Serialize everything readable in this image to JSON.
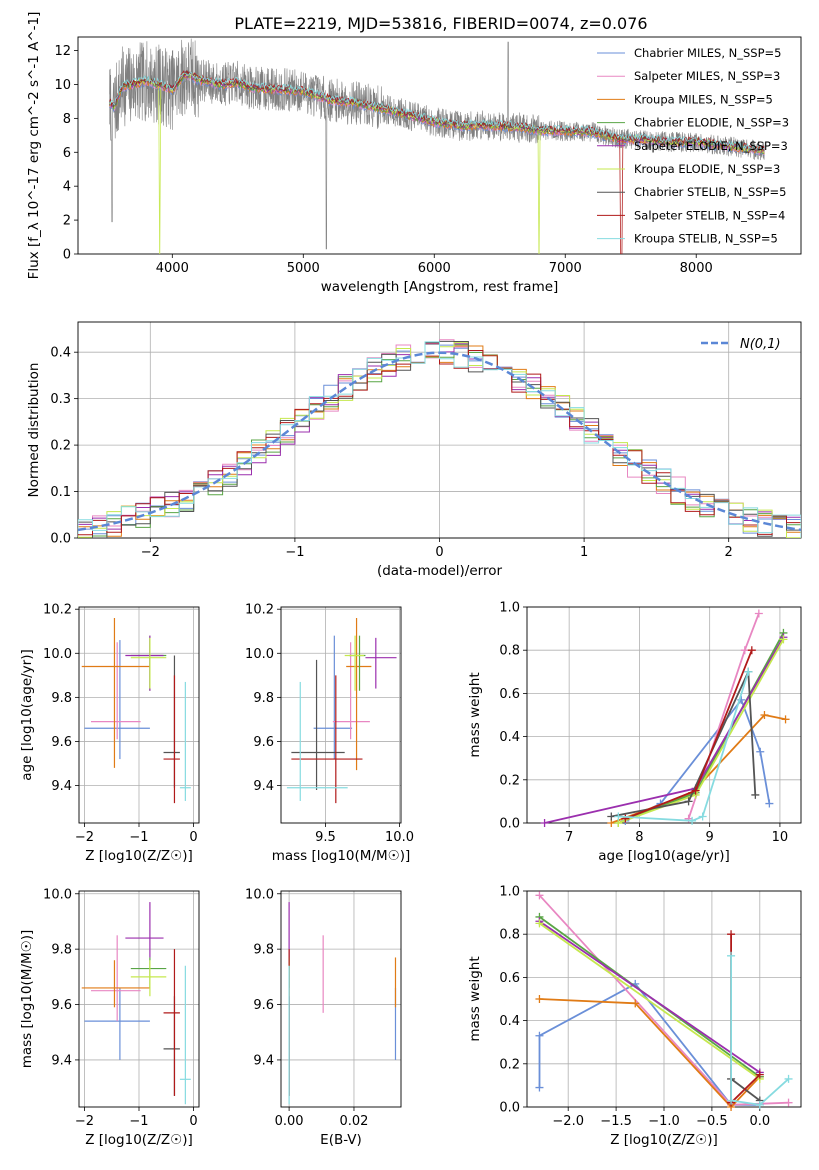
{
  "figure_title": "PLATE=2219, MJD=53816, FIBERID=0074, z=0.076",
  "series_colors": [
    "#6a8fd8",
    "#e887c2",
    "#e07b16",
    "#59a545",
    "#9b2fae",
    "#c5e84e",
    "#545454",
    "#b01a1a",
    "#86dbe0"
  ],
  "legend_labels": [
    "Chabrier MILES, N_SSP=5",
    "Salpeter MILES, N_SSP=3",
    "Kroupa MILES, N_SSP=5",
    "Chabrier ELODIE, N_SSP=3",
    "Salpeter ELODIE, N_SSP=3",
    "Kroupa ELODIE, N_SSP=3",
    "Chabrier STELIB, N_SSP=5",
    "Salpeter STELIB, N_SSP=4",
    "Kroupa STELIB, N_SSP=5"
  ],
  "chart_data": [
    {
      "id": "spectrum",
      "type": "line",
      "xlabel": "wavelength [Angstrom, rest frame]",
      "ylabel": "Flux [f_λ 10^-17 erg cm^-2 s^-1 A^-1]",
      "xlim": [
        3280,
        8800
      ],
      "ylim": [
        0,
        12.8
      ],
      "xticks": [
        4000,
        5000,
        6000,
        7000,
        8000
      ],
      "yticks": [
        0,
        2,
        4,
        6,
        8,
        10,
        12
      ],
      "grid": false,
      "legend": "upper right",
      "data_color": "#808080",
      "continuum": [
        [
          3520,
          8.9
        ],
        [
          3560,
          8.7
        ],
        [
          3620,
          9.9
        ],
        [
          3700,
          10.0
        ],
        [
          3800,
          10.2
        ],
        [
          3900,
          10.0
        ],
        [
          4000,
          9.7
        ],
        [
          4100,
          10.6
        ],
        [
          4200,
          10.3
        ],
        [
          4300,
          10.1
        ],
        [
          4400,
          10.0
        ],
        [
          4500,
          10.1
        ],
        [
          4600,
          9.8
        ],
        [
          4800,
          9.7
        ],
        [
          5000,
          9.6
        ],
        [
          5200,
          9.1
        ],
        [
          5400,
          8.9
        ],
        [
          5600,
          8.6
        ],
        [
          5800,
          8.2
        ],
        [
          6000,
          7.8
        ],
        [
          6200,
          7.55
        ],
        [
          6400,
          7.6
        ],
        [
          6600,
          7.5
        ],
        [
          6800,
          7.3
        ],
        [
          7000,
          7.25
        ],
        [
          7200,
          7.2
        ],
        [
          7400,
          6.8
        ],
        [
          7600,
          6.75
        ],
        [
          7800,
          6.6
        ],
        [
          8000,
          6.6
        ],
        [
          8200,
          6.4
        ],
        [
          8400,
          6.2
        ],
        [
          8520,
          6.1
        ]
      ],
      "data_range": [
        3520,
        8520
      ],
      "model_range": [
        3520,
        8520
      ]
    },
    {
      "id": "residuals",
      "type": "bar",
      "xlabel": "(data-model)/error",
      "ylabel": "Normed distribution",
      "xlim": [
        -2.5,
        2.5
      ],
      "ylim": [
        0,
        0.465
      ],
      "xticks": [
        -2,
        -1,
        0,
        1,
        2
      ],
      "yticks": [
        0.0,
        0.1,
        0.2,
        0.3,
        0.4
      ],
      "grid": true,
      "legend": "upper right",
      "legend_label": "N(0,1)",
      "gaussian_color": "#5b87d6",
      "bin_width": 0.1
    },
    {
      "id": "age-vs-Z",
      "type": "scatter",
      "xlabel": "Z [log10(Z/Z☉)]",
      "ylabel": "age [log10(age/yr)]",
      "xlim": [
        -2.1,
        0.1
      ],
      "ylim": [
        9.23,
        10.21
      ],
      "xticks": [
        -2,
        -1,
        0
      ],
      "yticks": [
        9.4,
        9.6,
        9.8,
        10.0,
        10.2
      ],
      "grid": true,
      "points": [
        {
          "x": -1.35,
          "y": 9.66,
          "xerr": [
            0.65,
            0.55
          ],
          "yerr": [
            0.14,
            0.4
          ]
        },
        {
          "x": -1.4,
          "y": 9.69,
          "xerr": [
            0.48,
            0.43
          ],
          "yerr": [
            0.08,
            0.36
          ]
        },
        {
          "x": -1.45,
          "y": 9.94,
          "xerr": [
            0.6,
            0.65
          ],
          "yerr": [
            0.46,
            0.22
          ]
        },
        {
          "x": -0.8,
          "y": 9.99,
          "xerr": [
            0.35,
            0.3
          ],
          "yerr": [
            0.16,
            0.09
          ]
        },
        {
          "x": -0.8,
          "y": 9.99,
          "xerr": [
            0.45,
            0.25
          ],
          "yerr": [
            0.16,
            0.09
          ]
        },
        {
          "x": -0.8,
          "y": 9.98,
          "xerr": [
            0.35,
            0.3
          ],
          "yerr": [
            0.14,
            0.09
          ]
        },
        {
          "x": -0.35,
          "y": 9.55,
          "xerr": [
            0.2,
            0.1
          ],
          "yerr": [
            0.16,
            0.44
          ]
        },
        {
          "x": -0.35,
          "y": 9.52,
          "xerr": [
            0.2,
            0.1
          ],
          "yerr": [
            0.2,
            0.38
          ]
        },
        {
          "x": -0.15,
          "y": 9.39,
          "xerr": [
            0.1,
            0.1
          ],
          "yerr": [
            0.06,
            0.48
          ]
        }
      ]
    },
    {
      "id": "age-vs-mass",
      "type": "scatter",
      "xlabel": "mass [log10(M/M☉)]",
      "ylabel": "",
      "xlim": [
        9.2,
        10.01
      ],
      "ylim": [
        9.23,
        10.21
      ],
      "xticks": [
        9.5,
        10.0
      ],
      "yticks": [
        9.4,
        9.6,
        9.8,
        10.0,
        10.2
      ],
      "grid": true,
      "points": [
        {
          "x": 9.56,
          "y": 9.66,
          "xerr": [
            0.14,
            0.12
          ],
          "yerr": [
            0.14,
            0.42
          ]
        },
        {
          "x": 9.67,
          "y": 9.69,
          "xerr": [
            0.12,
            0.13
          ],
          "yerr": [
            0.08,
            0.36
          ]
        },
        {
          "x": 9.71,
          "y": 9.94,
          "xerr": [
            0.07,
            0.1
          ],
          "yerr": [
            0.47,
            0.22
          ]
        },
        {
          "x": 9.73,
          "y": 9.99,
          "xerr": [
            0.07,
            0.04
          ],
          "yerr": [
            0.16,
            0.09
          ]
        },
        {
          "x": 9.84,
          "y": 9.98,
          "xerr": [
            0.07,
            0.14
          ],
          "yerr": [
            0.14,
            0.09
          ]
        },
        {
          "x": 9.7,
          "y": 9.99,
          "xerr": [
            0.07,
            0.06
          ],
          "yerr": [
            0.16,
            0.09
          ]
        },
        {
          "x": 9.44,
          "y": 9.55,
          "xerr": [
            0.17,
            0.19
          ],
          "yerr": [
            0.17,
            0.42
          ]
        },
        {
          "x": 9.57,
          "y": 9.52,
          "xerr": [
            0.3,
            0.18
          ],
          "yerr": [
            0.2,
            0.38
          ]
        },
        {
          "x": 9.33,
          "y": 9.39,
          "xerr": [
            0.09,
            0.32
          ],
          "yerr": [
            0.06,
            0.48
          ]
        }
      ]
    },
    {
      "id": "massweight-vs-age",
      "type": "line",
      "xlabel": "age [log10(age/yr)]",
      "ylabel": "mass weight",
      "xlim": [
        6.4,
        10.3
      ],
      "ylim": [
        0,
        1.0
      ],
      "xticks": [
        7,
        8,
        9,
        10
      ],
      "yticks": [
        0.0,
        0.2,
        0.4,
        0.6,
        0.8,
        1.0
      ],
      "grid": true,
      "series": [
        {
          "points": [
            [
              7.8,
              0.01
            ],
            [
              8.3,
              0.09
            ],
            [
              9.45,
              0.57
            ],
            [
              9.72,
              0.33
            ],
            [
              9.85,
              0.09
            ]
          ]
        },
        {
          "points": [
            [
              8.7,
              0.02
            ],
            [
              9.5,
              0.8
            ],
            [
              9.7,
              0.97
            ]
          ]
        },
        {
          "points": [
            [
              7.6,
              0.0
            ],
            [
              8.75,
              0.14
            ],
            [
              9.78,
              0.5
            ],
            [
              10.08,
              0.48
            ]
          ]
        },
        {
          "points": [
            [
              7.7,
              0.0
            ],
            [
              8.8,
              0.14
            ],
            [
              10.05,
              0.88
            ]
          ]
        },
        {
          "points": [
            [
              6.65,
              0.0
            ],
            [
              8.8,
              0.16
            ],
            [
              10.05,
              0.86
            ]
          ]
        },
        {
          "points": [
            [
              7.7,
              0.0
            ],
            [
              8.8,
              0.13
            ],
            [
              10.05,
              0.85
            ]
          ]
        },
        {
          "points": [
            [
              7.6,
              0.03
            ],
            [
              8.7,
              0.1
            ],
            [
              9.55,
              0.7
            ],
            [
              9.65,
              0.13
            ]
          ]
        },
        {
          "points": [
            [
              7.8,
              0.02
            ],
            [
              8.8,
              0.15
            ],
            [
              9.6,
              0.8
            ]
          ]
        },
        {
          "points": [
            [
              7.7,
              0.03
            ],
            [
              8.75,
              0.01
            ],
            [
              8.9,
              0.03
            ],
            [
              9.55,
              0.7
            ]
          ]
        }
      ]
    },
    {
      "id": "mass-vs-Z",
      "type": "scatter",
      "xlabel": "Z [log10(Z/Z☉)]",
      "ylabel": "mass [log10(M/M☉)]",
      "xlim": [
        -2.1,
        0.1
      ],
      "ylim": [
        9.23,
        10.01
      ],
      "xticks": [
        -2,
        -1,
        0
      ],
      "yticks": [
        9.4,
        9.6,
        9.8,
        10.0
      ],
      "grid": true,
      "points": [
        {
          "x": -1.35,
          "y": 9.54,
          "xerr": [
            0.65,
            0.55
          ],
          "yerr": [
            0.14,
            0.12
          ]
        },
        {
          "x": -1.4,
          "y": 9.65,
          "xerr": [
            0.48,
            0.43
          ],
          "yerr": [
            0.11,
            0.2
          ]
        },
        {
          "x": -1.45,
          "y": 9.66,
          "xerr": [
            0.6,
            0.65
          ],
          "yerr": [
            0.07,
            0.1
          ]
        },
        {
          "x": -0.8,
          "y": 9.73,
          "xerr": [
            0.35,
            0.3
          ],
          "yerr": [
            0.07,
            0.04
          ]
        },
        {
          "x": -0.8,
          "y": 9.84,
          "xerr": [
            0.45,
            0.25
          ],
          "yerr": [
            0.07,
            0.13
          ]
        },
        {
          "x": -0.8,
          "y": 9.7,
          "xerr": [
            0.35,
            0.3
          ],
          "yerr": [
            0.07,
            0.06
          ]
        },
        {
          "x": -0.35,
          "y": 9.44,
          "xerr": [
            0.2,
            0.1
          ],
          "yerr": [
            0.17,
            0.19
          ]
        },
        {
          "x": -0.35,
          "y": 9.57,
          "xerr": [
            0.2,
            0.1
          ],
          "yerr": [
            0.3,
            0.23
          ]
        },
        {
          "x": -0.15,
          "y": 9.33,
          "xerr": [
            0.1,
            0.1
          ],
          "yerr": [
            0.09,
            0.41
          ]
        }
      ]
    },
    {
      "id": "mass-vs-ebv",
      "type": "scatter",
      "xlabel": "E(B-V)",
      "ylabel": "",
      "xlim": [
        -0.0025,
        0.0345
      ],
      "ylim": [
        9.23,
        10.01
      ],
      "xticks": [
        0.0,
        0.02
      ],
      "yticks": [
        9.4,
        9.6,
        9.8,
        10.0
      ],
      "grid": true,
      "points": [
        {
          "x": 0.0328,
          "y": 9.54,
          "xerr": [
            0,
            0
          ],
          "yerr": [
            0.14,
            0.12
          ]
        },
        {
          "x": 0.0105,
          "y": 9.65,
          "xerr": [
            0,
            0
          ],
          "yerr": [
            0.08,
            0.2
          ]
        },
        {
          "x": 0.0328,
          "y": 9.66,
          "xerr": [
            0,
            0
          ],
          "yerr": [
            0.07,
            0.11
          ]
        },
        {
          "x": 0.0,
          "y": 9.73,
          "xerr": [
            0,
            0
          ],
          "yerr": [
            0.07,
            0.04
          ]
        },
        {
          "x": 0.0,
          "y": 9.84,
          "xerr": [
            0,
            0
          ],
          "yerr": [
            0.07,
            0.13
          ]
        },
        {
          "x": 0.0,
          "y": 9.7,
          "xerr": [
            0,
            0
          ],
          "yerr": [
            0.07,
            0.06
          ]
        },
        {
          "x": 0.0,
          "y": 9.44,
          "xerr": [
            0,
            0
          ],
          "yerr": [
            0.17,
            0.19
          ]
        },
        {
          "x": 0.0,
          "y": 9.57,
          "xerr": [
            0,
            0
          ],
          "yerr": [
            0.3,
            0.23
          ]
        },
        {
          "x": 0.0,
          "y": 9.33,
          "xerr": [
            0,
            0
          ],
          "yerr": [
            0.09,
            0.41
          ]
        }
      ]
    },
    {
      "id": "massweight-vs-Z",
      "type": "line",
      "xlabel": "Z [log10(Z/Z☉)]",
      "ylabel": "mass weight",
      "xlim": [
        -2.43,
        0.43
      ],
      "ylim": [
        0,
        1.0
      ],
      "xticks": [
        -2.0,
        -1.5,
        -1.0,
        -0.5,
        0.0
      ],
      "yticks": [
        0.0,
        0.2,
        0.4,
        0.6,
        0.8,
        1.0
      ],
      "grid": true,
      "series": [
        {
          "points": [
            [
              -2.3,
              0.09
            ],
            [
              -2.3,
              0.33
            ],
            [
              -1.3,
              0.57
            ],
            [
              -0.3,
              0.01
            ],
            [
              0.0,
              0.01
            ]
          ]
        },
        {
          "points": [
            [
              -2.3,
              0.98
            ],
            [
              -0.3,
              0.01
            ],
            [
              0.3,
              0.02
            ]
          ]
        },
        {
          "points": [
            [
              -2.3,
              0.5
            ],
            [
              -1.3,
              0.48
            ],
            [
              -0.3,
              0.0
            ],
            [
              0.0,
              0.14
            ]
          ]
        },
        {
          "points": [
            [
              -2.3,
              0.88
            ],
            [
              0.0,
              0.14
            ]
          ]
        },
        {
          "points": [
            [
              -2.3,
              0.86
            ],
            [
              0.0,
              0.16
            ]
          ]
        },
        {
          "points": [
            [
              -2.3,
              0.85
            ],
            [
              0.0,
              0.13
            ]
          ]
        },
        {
          "points": [
            [
              -0.3,
              0.13
            ],
            [
              0.0,
              0.03
            ]
          ]
        },
        {
          "points": [
            [
              -0.3,
              0.8
            ],
            [
              -0.3,
              0.02
            ],
            [
              0.0,
              0.15
            ]
          ]
        },
        {
          "points": [
            [
              -0.3,
              0.7
            ],
            [
              -0.3,
              0.03
            ],
            [
              0.0,
              0.01
            ],
            [
              0.3,
              0.13
            ]
          ]
        }
      ]
    }
  ]
}
